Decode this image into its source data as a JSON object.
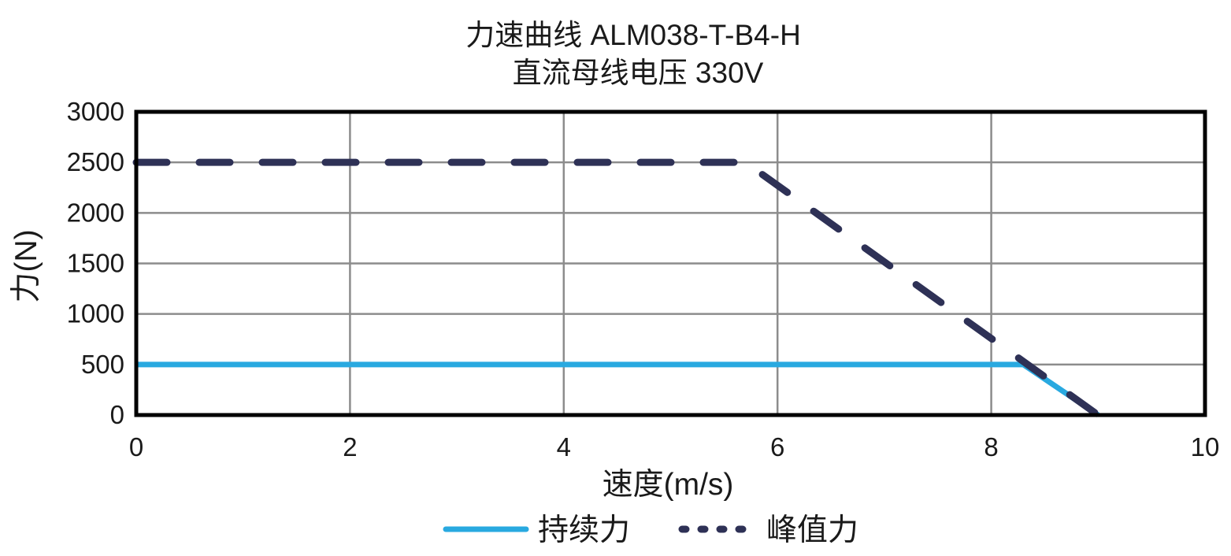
{
  "chart_data": {
    "type": "line",
    "title_lines": [
      "力速曲线 ALM038-T-B4-H",
      "直流母线电压 330V"
    ],
    "xlabel": "速度(m/s)",
    "ylabel": "力(N)",
    "xlim": [
      0,
      10
    ],
    "ylim": [
      0,
      3000
    ],
    "xticks": [
      0,
      2,
      4,
      6,
      8,
      10
    ],
    "yticks": [
      0,
      500,
      1000,
      1500,
      2000,
      2500,
      3000
    ],
    "grid": true,
    "grid_color": "#8C8C8C",
    "axis_color": "#000000",
    "text_color": "#1A1A1A",
    "legend_position": "bottom",
    "series": [
      {
        "id": "continuous-force",
        "name": "持续力",
        "style": "solid",
        "color": "#29A9E0",
        "points": [
          [
            0,
            500
          ],
          [
            8.3,
            500
          ],
          [
            9.0,
            0
          ]
        ]
      },
      {
        "id": "peak-force",
        "name": "峰值力",
        "style": "dashed",
        "color": "#2E3156",
        "points": [
          [
            0,
            2500
          ],
          [
            5.7,
            2500
          ],
          [
            9.0,
            0
          ]
        ]
      }
    ]
  }
}
